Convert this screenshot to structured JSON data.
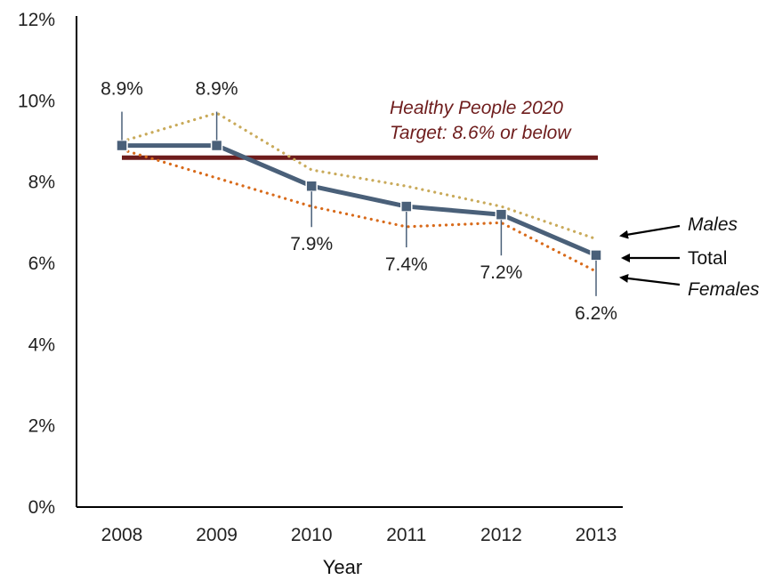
{
  "chart_data": {
    "type": "line",
    "title": "",
    "xlabel": "Year",
    "ylabel": "",
    "categories": [
      "2008",
      "2009",
      "2010",
      "2011",
      "2012",
      "2013"
    ],
    "ylim": [
      0,
      12
    ],
    "yticks": [
      0,
      2,
      4,
      6,
      8,
      10,
      12
    ],
    "ytick_labels": [
      "0%",
      "2%",
      "4%",
      "6%",
      "8%",
      "10%",
      "12%"
    ],
    "grid": false,
    "series": [
      {
        "name": "Total",
        "values": [
          8.9,
          8.9,
          7.9,
          7.4,
          7.2,
          6.2
        ],
        "labels": [
          "8.9%",
          "8.9%",
          "7.9%",
          "7.4%",
          "7.2%",
          "6.2%"
        ],
        "color": "#4a6079",
        "style": "solid"
      },
      {
        "name": "Males",
        "values": [
          9.0,
          9.7,
          8.3,
          7.9,
          7.4,
          6.6
        ],
        "color": "#c9aa5a",
        "style": "dotted"
      },
      {
        "name": "Females",
        "values": [
          8.8,
          8.1,
          7.4,
          6.9,
          7.0,
          5.8
        ],
        "color": "#d86a1a",
        "style": "dotted"
      }
    ],
    "target": {
      "value": 8.6,
      "line1": "Healthy People 2020",
      "line2": "Target: 8.6% or below",
      "color": "#6e1c1c"
    },
    "legend_placement": "right"
  }
}
